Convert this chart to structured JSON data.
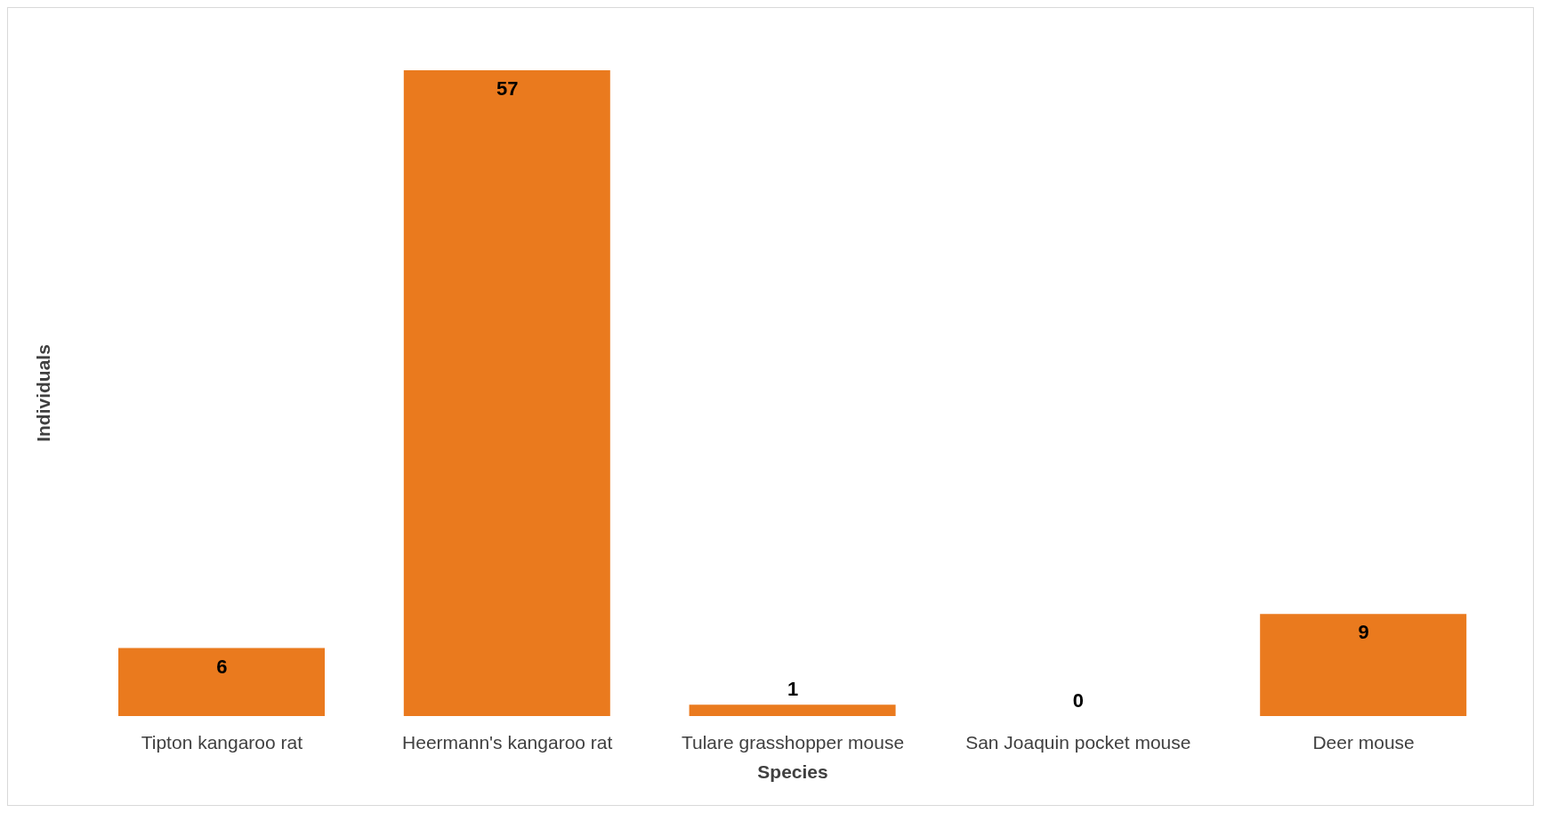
{
  "chart_data": {
    "type": "bar",
    "xlabel": "Species",
    "ylabel": "Individuals",
    "categories": [
      "Tipton kangaroo rat",
      "Heermann's kangaroo rat",
      "Tulare grasshopper mouse",
      "San Joaquin pocket mouse",
      "Deer mouse"
    ],
    "values": [
      6,
      57,
      1,
      0,
      9
    ],
    "color": "#ea7a1e",
    "data_labels": true,
    "grid": false,
    "legend": false
  }
}
